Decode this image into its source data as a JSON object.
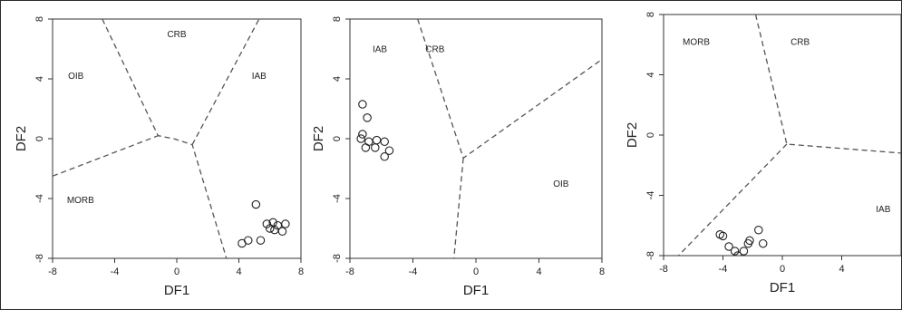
{
  "chart_data": [
    {
      "type": "scatter",
      "xlabel": "DF1",
      "ylabel": "DF2",
      "xlim": [
        -8,
        8
      ],
      "ylim": [
        -8,
        8
      ],
      "xticks": [
        "-8",
        "-4",
        "0",
        "4",
        "8"
      ],
      "yticks": [
        "-8",
        "-4",
        "0",
        "4",
        "8"
      ],
      "regions": [
        {
          "label": "CRB",
          "at": [
            0,
            6.8
          ]
        },
        {
          "label": "OIB",
          "at": [
            -6.5,
            4
          ]
        },
        {
          "label": "IAB",
          "at": [
            5.3,
            4
          ]
        },
        {
          "label": "MORB",
          "at": [
            -6.2,
            -4.3
          ]
        }
      ],
      "boundaries": [
        [
          [
            -4.8,
            8
          ],
          [
            -1.2,
            0.2
          ],
          [
            -0.2,
            0
          ],
          [
            1.0,
            -0.4
          ],
          [
            3.2,
            -8
          ]
        ],
        [
          [
            -8,
            -2.5
          ],
          [
            -1.2,
            0.2
          ]
        ],
        [
          [
            1.0,
            -0.4
          ],
          [
            5.3,
            8
          ]
        ]
      ],
      "points": [
        {
          "x": 5.1,
          "y": -4.4
        },
        {
          "x": 6.2,
          "y": -5.6
        },
        {
          "x": 6.5,
          "y": -5.8
        },
        {
          "x": 7.0,
          "y": -5.7
        },
        {
          "x": 6.0,
          "y": -6.0
        },
        {
          "x": 6.3,
          "y": -6.1
        },
        {
          "x": 6.8,
          "y": -6.2
        },
        {
          "x": 5.8,
          "y": -5.7
        },
        {
          "x": 4.6,
          "y": -6.8
        },
        {
          "x": 5.4,
          "y": -6.8
        },
        {
          "x": 4.2,
          "y": -7.0
        }
      ]
    },
    {
      "type": "scatter",
      "xlabel": "DF1",
      "ylabel": "DF2",
      "xlim": [
        -8,
        8
      ],
      "ylim": [
        -8,
        8
      ],
      "xticks": [
        "-8",
        "-4",
        "0",
        "4",
        "8"
      ],
      "yticks": [
        "-8",
        "-4",
        "0",
        "4",
        "8"
      ],
      "regions": [
        {
          "label": "IAB",
          "at": [
            -6.1,
            5.8
          ]
        },
        {
          "label": "CRB",
          "at": [
            -2.6,
            5.8
          ]
        },
        {
          "label": "OIB",
          "at": [
            5.4,
            -3.2
          ]
        }
      ],
      "boundaries": [
        [
          [
            -3.7,
            8
          ],
          [
            -0.8,
            -1.3
          ],
          [
            8,
            5.3
          ]
        ],
        [
          [
            -0.8,
            -1.3
          ],
          [
            -1.4,
            -8
          ]
        ]
      ],
      "points": [
        {
          "x": -7.2,
          "y": 2.3
        },
        {
          "x": -6.9,
          "y": 1.4
        },
        {
          "x": -7.2,
          "y": 0.3
        },
        {
          "x": -7.3,
          "y": 0.0
        },
        {
          "x": -6.8,
          "y": -0.2
        },
        {
          "x": -6.3,
          "y": -0.1
        },
        {
          "x": -5.8,
          "y": -0.2
        },
        {
          "x": -7.0,
          "y": -0.6
        },
        {
          "x": -6.4,
          "y": -0.6
        },
        {
          "x": -5.5,
          "y": -0.8
        },
        {
          "x": -5.8,
          "y": -1.2
        }
      ]
    },
    {
      "type": "scatter",
      "xlabel": "DF1",
      "ylabel": "DF2",
      "xlim": [
        -8,
        8
      ],
      "ylim": [
        -8,
        8
      ],
      "xticks": [
        "-8",
        "-4",
        "0",
        "4"
      ],
      "yticks": [
        "-8",
        "-4",
        "0",
        "4",
        "8"
      ],
      "regions": [
        {
          "label": "MORB",
          "at": [
            -5.8,
            6.0
          ]
        },
        {
          "label": "CRB",
          "at": [
            1.2,
            6.0
          ]
        },
        {
          "label": "IAB",
          "at": [
            6.8,
            -5.1
          ]
        }
      ],
      "boundaries": [
        [
          [
            -1.8,
            8
          ],
          [
            0.3,
            -0.6
          ],
          [
            8,
            -1.2
          ]
        ],
        [
          [
            0.3,
            -0.6
          ],
          [
            -7.0,
            -8
          ]
        ]
      ],
      "points": [
        {
          "x": -4.2,
          "y": -6.6
        },
        {
          "x": -4.0,
          "y": -6.7
        },
        {
          "x": -3.6,
          "y": -7.4
        },
        {
          "x": -3.2,
          "y": -7.7
        },
        {
          "x": -3.0,
          "y": -8.0
        },
        {
          "x": -2.6,
          "y": -7.7
        },
        {
          "x": -2.3,
          "y": -7.2
        },
        {
          "x": -2.2,
          "y": -7.0
        },
        {
          "x": -1.6,
          "y": -6.3
        },
        {
          "x": -1.3,
          "y": -7.2
        }
      ]
    }
  ]
}
